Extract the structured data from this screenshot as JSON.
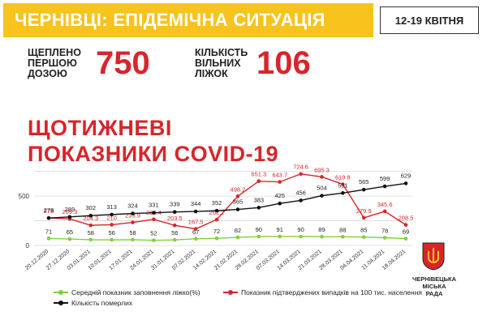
{
  "header": {
    "title": "ЧЕРНІВЦІ: ЕПІДЕМІЧНА СИТУАЦІЯ",
    "date_range": "12-19 КВІТНЯ"
  },
  "stats": {
    "vaccinated_label": [
      "ЩЕПЛЕНО",
      "ПЕРШОЮ",
      "ДОЗОЮ"
    ],
    "vaccinated_value": "750",
    "free_beds_label": [
      "КІЛЬКІСТЬ",
      "ВІЛЬНИХ",
      "ЛІЖОК"
    ],
    "free_beds_value": "106"
  },
  "section": {
    "title_line1": "ЩОТИЖНЕВІ",
    "title_line2": "ПОКАЗНИКИ COVID-19"
  },
  "footer": {
    "city_line1": "ЧЕРНІВЕЦЬКА",
    "city_line2": "МІСЬКА",
    "city_line3": "РАДА"
  },
  "colors": {
    "banner": "#f7c31c",
    "accent_red": "#d7252b",
    "green": "#7fd13b",
    "black": "#111111",
    "grid": "#d9d9d9"
  },
  "chart_data": {
    "type": "line",
    "categories": [
      "20.12.2020",
      "27.12.2020",
      "03.01.2021",
      "10.01.2021",
      "17.01.2021",
      "24.01.2021",
      "31.01.2021",
      "07.02.2021",
      "14.02.2021",
      "21.02.2021",
      "28.02.2021",
      "07.03.2021",
      "14.03.2021",
      "21.03.2021",
      "28.03.2021",
      "04.04.2021",
      "11.04.2021",
      "18.04.2021"
    ],
    "series": [
      {
        "name": "Середній показник заповнення ліжко(%)",
        "color": "#7fd13b",
        "values": [
          71,
          65,
          58,
          56,
          58,
          52,
          56,
          67,
          72,
          82,
          90,
          91,
          90,
          89,
          88,
          85,
          78,
          69
        ]
      },
      {
        "name": "Показник підтверджених випадків на 100 тис. населення",
        "color": "#d7252b",
        "values": [
          278,
          269.3,
          204.3,
          210,
          233.9,
          264.4,
          203.5,
          167.5,
          262.2,
          498.2,
          651.3,
          643.7,
          724.6,
          695.3,
          619.8,
          279.9,
          345.6,
          208.5
        ]
      },
      {
        "name": "Кількість померлих",
        "color": "#111111",
        "values": [
          278,
          289,
          302,
          313,
          324,
          331,
          339,
          344,
          352,
          365,
          383,
          425,
          456,
          504,
          531,
          565,
          599,
          629
        ]
      }
    ],
    "y_ticks": [
      0,
      500
    ],
    "ylim": [
      0,
      780
    ],
    "grid": true,
    "legend": "bottom"
  }
}
